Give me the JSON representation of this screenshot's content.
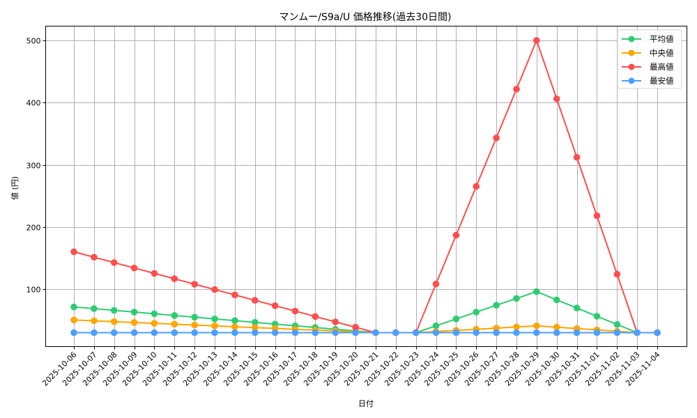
{
  "chart_data": {
    "type": "line",
    "title": "マンムー/S9a/U 価格推移(過去30日間)",
    "xlabel": "日付",
    "ylabel": "値 (円)",
    "ylim": [
      0,
      525
    ],
    "yticks": [
      100,
      200,
      300,
      400,
      500
    ],
    "grid": true,
    "legend_position": "upper right",
    "x": [
      "2025-10-06",
      "2025-10-07",
      "2025-10-08",
      "2025-10-09",
      "2025-10-10",
      "2025-10-11",
      "2025-10-12",
      "2025-10-13",
      "2025-10-14",
      "2025-10-15",
      "2025-10-16",
      "2025-10-17",
      "2025-10-18",
      "2025-10-19",
      "2025-10-20",
      "2025-10-21",
      "2025-10-22",
      "2025-10-23",
      "2025-10-24",
      "2025-10-25",
      "2025-10-26",
      "2025-10-27",
      "2025-10-28",
      "2025-10-29",
      "2025-10-30",
      "2025-10-31",
      "2025-11-01",
      "2025-11-02",
      "2025-11-03",
      "2025-11-04"
    ],
    "series": [
      {
        "name": "平均値",
        "color": "#2ecc71",
        "values": [
          71.3,
          68.6,
          65.8,
          63.1,
          60.3,
          57.6,
          54.8,
          52.1,
          49.3,
          46.6,
          43.8,
          41.1,
          38.3,
          35.5,
          32.8,
          30,
          30,
          30,
          41,
          52,
          63,
          74,
          85,
          96,
          82.8,
          69.6,
          56.4,
          43.2,
          30,
          30
        ]
      },
      {
        "name": "中央値",
        "color": "#ffa500",
        "values": [
          50.4,
          49.0,
          47.7,
          46.3,
          45.0,
          43.6,
          42.2,
          40.9,
          39.5,
          38.2,
          36.8,
          35.4,
          34.1,
          32.7,
          31.4,
          30,
          30,
          30,
          31.8,
          33.7,
          35.5,
          37.3,
          39.2,
          41,
          38.8,
          36.6,
          34.4,
          32.2,
          30,
          30
        ]
      },
      {
        "name": "最高値",
        "color": "#ff4d4d",
        "values": [
          160,
          151.3,
          142.7,
          134,
          125.3,
          116.7,
          108,
          99.3,
          90.7,
          82,
          73.3,
          64.7,
          56,
          47.3,
          38.7,
          30,
          30,
          30,
          108.3,
          186.7,
          265,
          343.3,
          421.7,
          500,
          406,
          312,
          218,
          124,
          30,
          30
        ]
      },
      {
        "name": "最安値",
        "color": "#4d9fff",
        "values": [
          30,
          30,
          30,
          30,
          30,
          30,
          30,
          30,
          30,
          30,
          30,
          30,
          30,
          30,
          30,
          30,
          30,
          30,
          30,
          30,
          30,
          30,
          30,
          30,
          30,
          30,
          30,
          30,
          30,
          30
        ]
      }
    ]
  },
  "chart": {
    "title": "マンムー/S9a/U 価格推移(過去30日間)",
    "xlabel": "日付",
    "ylabel": "値 (円)",
    "legend": [
      "平均値",
      "中央値",
      "最高値",
      "最安値"
    ]
  },
  "colors": {
    "grid": "#b0b0b0",
    "frame": "#000000",
    "average": "#2ecc71",
    "median": "#ffa500",
    "max": "#ff4d4d",
    "min": "#4d9fff"
  }
}
